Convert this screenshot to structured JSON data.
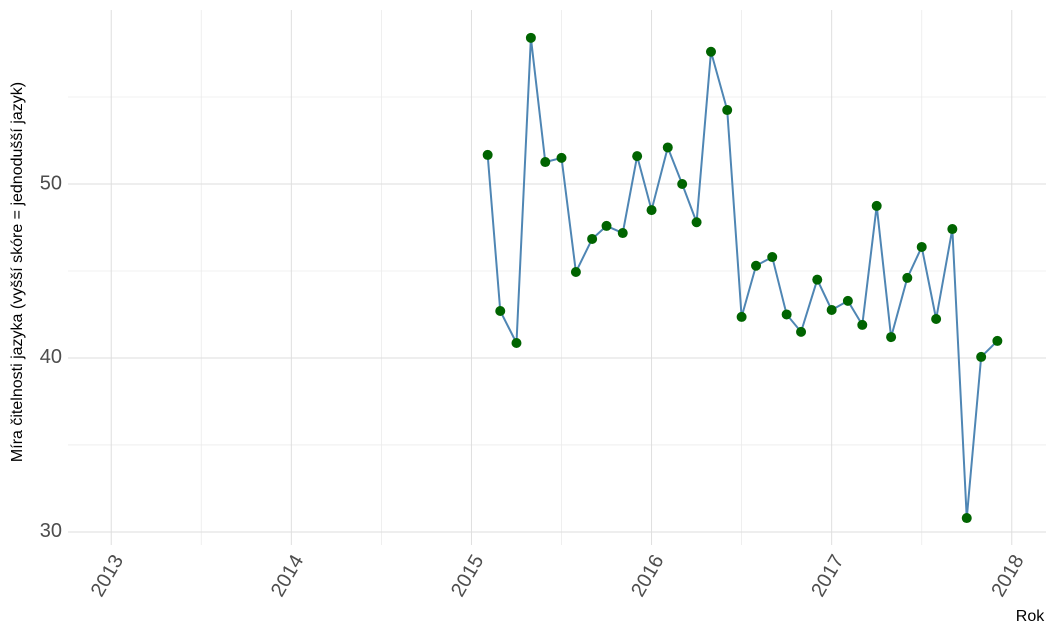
{
  "chart_data": {
    "type": "line",
    "x_label": "Rok",
    "y_label": "Míra čitelnosti jazyka (vyšší skóre = jednodušší jazyk)",
    "series": [
      {
        "color": "#4f86b4",
        "point_color": "#006400",
        "x": [
          2015.09,
          2015.16,
          2015.25,
          2015.33,
          2015.41,
          2015.5,
          2015.58,
          2015.67,
          2015.75,
          2015.84,
          2015.92,
          2016.0,
          2016.09,
          2016.17,
          2016.25,
          2016.33,
          2016.42,
          2016.5,
          2016.58,
          2016.67,
          2016.75,
          2016.83,
          2016.92,
          2017.0,
          2017.09,
          2017.17,
          2017.25,
          2017.33,
          2017.42,
          2017.5,
          2017.58,
          2017.67,
          2017.75,
          2017.83,
          2017.92
        ],
        "values": [
          51.67,
          42.7,
          40.86,
          58.4,
          51.26,
          51.5,
          44.94,
          46.84,
          47.59,
          47.18,
          51.6,
          48.5,
          52.1,
          50.0,
          47.8,
          57.6,
          54.25,
          42.36,
          45.3,
          45.8,
          42.5,
          41.5,
          44.5,
          42.76,
          43.28,
          41.9,
          48.74,
          41.2,
          44.6,
          46.38,
          42.24,
          47.41,
          30.8,
          40.06,
          40.98
        ]
      }
    ],
    "xlim": [
      2012.76,
      2018.19
    ],
    "xticks": [
      2013,
      2014,
      2015,
      2016,
      2017,
      2018
    ],
    "x_minor_ticks": [
      2013.5,
      2014.5,
      2015.5,
      2016.5,
      2017.5
    ],
    "ylim": [
      29.25,
      60
    ],
    "yticks": [
      30,
      40,
      50
    ],
    "y_minor_ticks": [
      35,
      45,
      55
    ],
    "grid": true
  }
}
